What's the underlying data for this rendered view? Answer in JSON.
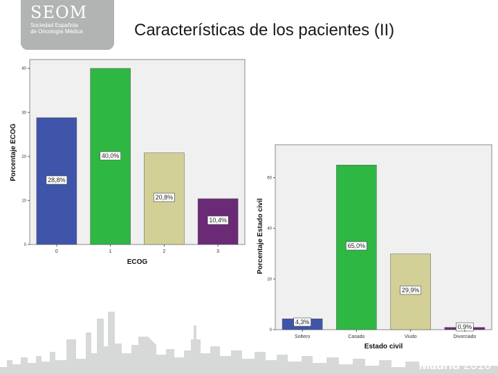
{
  "slide": {
    "title": "Características de los pacientes (II)"
  },
  "logo": {
    "title": "SEOM",
    "subtitle_lines": [
      "Sociedad Española",
      "de Oncología Médica"
    ]
  },
  "footer": {
    "city": "Madrid",
    "year": "2010"
  },
  "colors": {
    "plot_bg": "#f0f0f0",
    "logo_bg": "#b2b4b4",
    "skyline": "#d7d9d9",
    "footer_text": "#ffffff"
  },
  "chart_data": [
    {
      "type": "bar",
      "xlabel": "ECOG",
      "ylabel": "Porcentaje ECOG",
      "categories": [
        "0",
        "1",
        "2",
        "3"
      ],
      "values": [
        28.8,
        40.0,
        20.8,
        10.4
      ],
      "data_labels": [
        "28,8%",
        "40,0%",
        "20,8%",
        "10,4%"
      ],
      "colors": [
        "#3f55aa",
        "#2fb744",
        "#d2cf97",
        "#6b2a76"
      ],
      "ylim": [
        0,
        42
      ],
      "yticks": [
        0,
        10,
        20,
        30,
        40
      ],
      "ytick_labels": [
        "0",
        "10",
        "20",
        "30",
        "40"
      ],
      "grid": false
    },
    {
      "type": "bar",
      "xlabel": "Estado civil",
      "ylabel": "Porcentaje Estado civil",
      "categories": [
        "Soltero",
        "Casado",
        "Viudo",
        "Divorciado"
      ],
      "values": [
        4.3,
        65.0,
        29.9,
        0.9
      ],
      "data_labels": [
        "4,3%",
        "65,0%",
        "29,9%",
        "0,9%"
      ],
      "colors": [
        "#3f55aa",
        "#2fb744",
        "#d2cf97",
        "#6b2a76"
      ],
      "ylim": [
        0,
        73
      ],
      "yticks": [
        0,
        20,
        40,
        60
      ],
      "ytick_labels": [
        "0",
        "20",
        "40",
        "60"
      ],
      "grid": false
    }
  ]
}
